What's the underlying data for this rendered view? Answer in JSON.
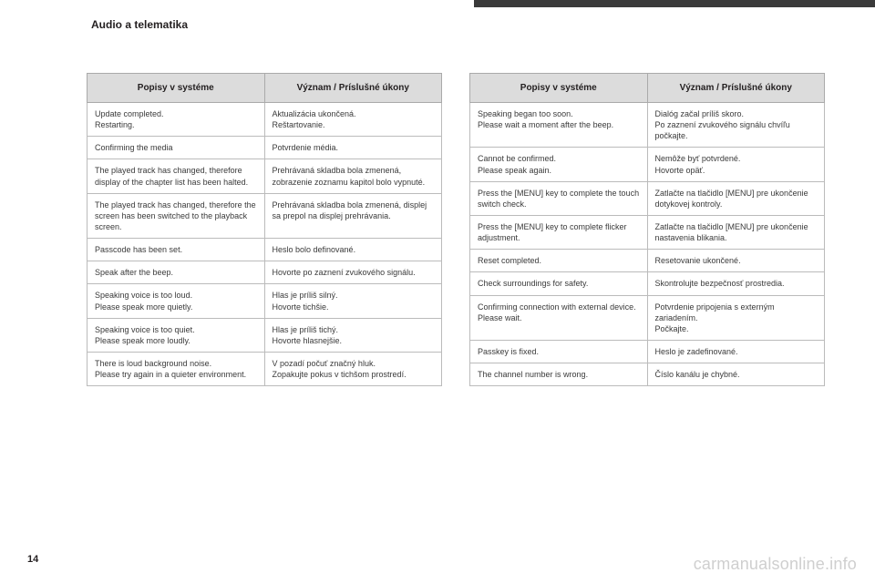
{
  "section_title": "Audio a telematika",
  "page_number": "14",
  "footer_site": "carmanualsonline.info",
  "left_table": {
    "head_left": "Popisy v systéme",
    "head_right": "Význam / Príslušné úkony",
    "rows": [
      {
        "l": "Update completed.\nRestarting.",
        "r": "Aktualizácia ukončená.\nReštartovanie."
      },
      {
        "l": "Confirming the media",
        "r": "Potvrdenie média."
      },
      {
        "l": "The played track has changed, therefore display of the chapter list has been halted.",
        "r": "Prehrávaná skladba bola zmenená, zobrazenie zoznamu kapitol bolo vypnuté."
      },
      {
        "l": "The played track has changed, therefore the screen has been switched to the playback screen.",
        "r": "Prehrávaná skladba bola zmenená, displej sa prepol na displej prehrávania."
      },
      {
        "l": "Passcode has been set.",
        "r": "Heslo bolo definované."
      },
      {
        "l": "Speak after the beep.",
        "r": "Hovorte po zaznení zvukového signálu."
      },
      {
        "l": "Speaking voice is too loud.\nPlease speak more quietly.",
        "r": "Hlas je príliš silný.\nHovorte tichšie."
      },
      {
        "l": "Speaking voice is too quiet.\nPlease speak more loudly.",
        "r": "Hlas je príliš tichý.\nHovorte hlasnejšie."
      },
      {
        "l": "There is loud background noise.\nPlease try again in a quieter environment.",
        "r": "V pozadí počuť značný hluk.\nZopakujte pokus v tichšom prostredí."
      }
    ]
  },
  "right_table": {
    "head_left": "Popisy v systéme",
    "head_right": "Význam / Príslušné úkony",
    "rows": [
      {
        "l": "Speaking began too soon.\nPlease wait a moment after the beep.",
        "r": "Dialóg začal príliš skoro.\nPo zaznení zvukového signálu chvíľu počkajte."
      },
      {
        "l": "Cannot be confirmed.\nPlease speak again.",
        "r": "Nemôže byť potvrdené.\nHovorte opäť."
      },
      {
        "l": "Press the [MENU] key to complete the touch switch check.",
        "r": "Zatlačte na tlačidlo [MENU] pre ukončenie dotykovej kontroly."
      },
      {
        "l": "Press the [MENU] key to complete flicker adjustment.",
        "r": "Zatlačte na tlačidlo [MENU] pre ukončenie nastavenia blikania."
      },
      {
        "l": "Reset completed.",
        "r": "Resetovanie ukončené."
      },
      {
        "l": "Check surroundings for safety.",
        "r": "Skontrolujte bezpečnosť prostredia."
      },
      {
        "l": "Confirming connection with external device.\nPlease wait.",
        "r": "Potvrdenie pripojenia s externým zariadením.\nPočkajte."
      },
      {
        "l": "Passkey is fixed.",
        "r": "Heslo je zadefinované."
      },
      {
        "l": "The channel number is wrong.",
        "r": "Číslo kanálu je chybné."
      }
    ]
  }
}
